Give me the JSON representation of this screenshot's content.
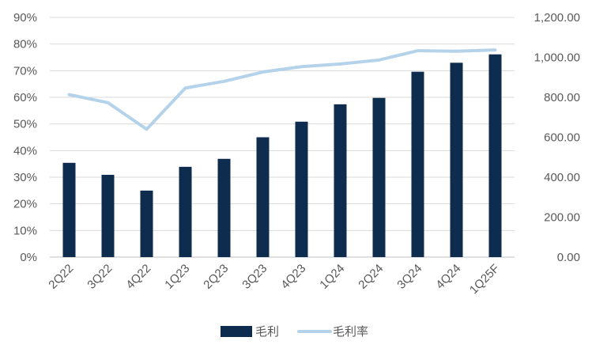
{
  "chart_data": {
    "type": "bar",
    "categories": [
      "2Q22",
      "3Q22",
      "4Q22",
      "1Q23",
      "2Q23",
      "3Q23",
      "4Q23",
      "1Q24",
      "2Q24",
      "3Q24",
      "4Q24",
      "1Q25F"
    ],
    "series": [
      {
        "name": "毛利",
        "type": "bar",
        "axis": "right",
        "color": "#0e2d4e",
        "values": [
          472,
          412,
          333,
          452,
          492,
          600,
          678,
          765,
          797,
          928,
          973,
          1015
        ]
      },
      {
        "name": "毛利率",
        "type": "line",
        "axis": "left",
        "color": "#b4d3ea",
        "values": [
          0.61,
          0.58,
          0.48,
          0.635,
          0.66,
          0.695,
          0.715,
          0.725,
          0.74,
          0.775,
          0.773,
          0.778
        ]
      }
    ],
    "left_axis": {
      "ylim": [
        0,
        0.9
      ],
      "ticks": [
        0,
        0.1,
        0.2,
        0.3,
        0.4,
        0.5,
        0.6,
        0.7,
        0.8,
        0.9
      ],
      "tick_labels": [
        "0%",
        "10%",
        "20%",
        "30%",
        "40%",
        "50%",
        "60%",
        "70%",
        "80%",
        "90%"
      ]
    },
    "right_axis": {
      "ylim": [
        0,
        1200
      ],
      "ticks": [
        0,
        200,
        400,
        600,
        800,
        1000,
        1200
      ],
      "tick_labels": [
        "0.00",
        "200.00",
        "400.00",
        "600.00",
        "800.00",
        "1,000.00",
        "1,200.00"
      ]
    },
    "grid": true,
    "legend": {
      "position": "bottom",
      "entries": [
        "毛利",
        "毛利率"
      ]
    }
  }
}
